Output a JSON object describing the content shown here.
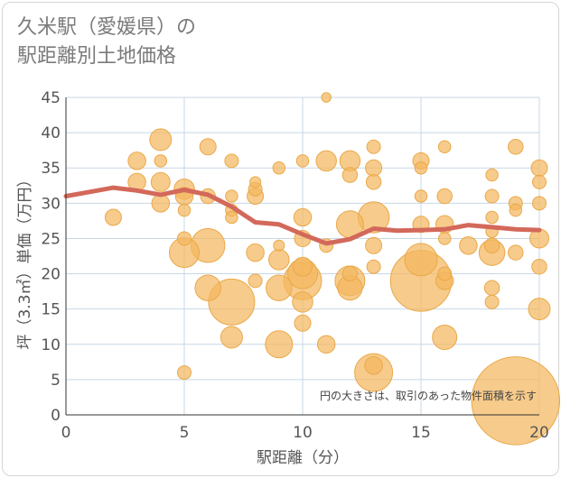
{
  "chart_data": {
    "type": "scatter",
    "title_line1": "久米駅（愛媛県）の",
    "title_line2": "駅距離別土地価格",
    "xlabel": "駅距離（分）",
    "ylabel": "坪（3.3㎡）単価（万円）",
    "xlim": [
      0,
      20
    ],
    "ylim": [
      0,
      45
    ],
    "xticks": [
      "0",
      "5",
      "10",
      "15",
      "20"
    ],
    "yticks": [
      "0",
      "5",
      "10",
      "15",
      "20",
      "25",
      "30",
      "35",
      "40",
      "45"
    ],
    "grid": true,
    "note": "円の大きさは、取引のあった物件面積を示す",
    "colors": {
      "bubble": "#f4b75e",
      "bubble_edge": "#e9a94a",
      "trend": "#d3695a",
      "grid": "#c8d7e6",
      "axis": "#333333"
    },
    "series": [
      {
        "name": "取引",
        "points": [
          {
            "x": 2,
            "y": 28,
            "s": 1.2
          },
          {
            "x": 3,
            "y": 36,
            "s": 1.3
          },
          {
            "x": 3,
            "y": 33,
            "s": 1.3
          },
          {
            "x": 4,
            "y": 39,
            "s": 1.6
          },
          {
            "x": 4,
            "y": 36,
            "s": 0.9
          },
          {
            "x": 4,
            "y": 33,
            "s": 1.4
          },
          {
            "x": 4,
            "y": 30,
            "s": 1.3
          },
          {
            "x": 5,
            "y": 32,
            "s": 1.5
          },
          {
            "x": 5,
            "y": 31,
            "s": 1.3
          },
          {
            "x": 5,
            "y": 29,
            "s": 0.9
          },
          {
            "x": 5,
            "y": 25,
            "s": 1.0
          },
          {
            "x": 5,
            "y": 23,
            "s": 2.2
          },
          {
            "x": 5,
            "y": 6,
            "s": 1.0
          },
          {
            "x": 6,
            "y": 38,
            "s": 1.2
          },
          {
            "x": 6,
            "y": 31,
            "s": 1.1
          },
          {
            "x": 6,
            "y": 24,
            "s": 2.5
          },
          {
            "x": 6,
            "y": 18,
            "s": 1.9
          },
          {
            "x": 7,
            "y": 36,
            "s": 1.0
          },
          {
            "x": 7,
            "y": 31,
            "s": 0.9
          },
          {
            "x": 7,
            "y": 29,
            "s": 0.9
          },
          {
            "x": 7,
            "y": 28,
            "s": 0.9
          },
          {
            "x": 7,
            "y": 16,
            "s": 3.4
          },
          {
            "x": 7,
            "y": 11,
            "s": 1.6
          },
          {
            "x": 8,
            "y": 33,
            "s": 0.8
          },
          {
            "x": 8,
            "y": 32,
            "s": 1.0
          },
          {
            "x": 8,
            "y": 31,
            "s": 1.2
          },
          {
            "x": 8,
            "y": 23,
            "s": 1.3
          },
          {
            "x": 8,
            "y": 19,
            "s": 1.0
          },
          {
            "x": 9,
            "y": 35,
            "s": 0.9
          },
          {
            "x": 9,
            "y": 24,
            "s": 0.8
          },
          {
            "x": 9,
            "y": 22,
            "s": 1.5
          },
          {
            "x": 9,
            "y": 18,
            "s": 1.9
          },
          {
            "x": 9,
            "y": 10,
            "s": 2.0
          },
          {
            "x": 10,
            "y": 36,
            "s": 0.9
          },
          {
            "x": 10,
            "y": 28,
            "s": 1.3
          },
          {
            "x": 10,
            "y": 25,
            "s": 1.2
          },
          {
            "x": 10,
            "y": 21,
            "s": 1.4
          },
          {
            "x": 10,
            "y": 20,
            "s": 2.2
          },
          {
            "x": 10,
            "y": 19,
            "s": 2.8
          },
          {
            "x": 10,
            "y": 16,
            "s": 1.5
          },
          {
            "x": 10,
            "y": 13,
            "s": 1.2
          },
          {
            "x": 11,
            "y": 45,
            "s": 0.7
          },
          {
            "x": 11,
            "y": 36,
            "s": 1.5
          },
          {
            "x": 11,
            "y": 24,
            "s": 1.0
          },
          {
            "x": 11,
            "y": 10,
            "s": 1.3
          },
          {
            "x": 12,
            "y": 36,
            "s": 1.5
          },
          {
            "x": 12,
            "y": 34,
            "s": 1.1
          },
          {
            "x": 12,
            "y": 27,
            "s": 2.0
          },
          {
            "x": 12,
            "y": 20,
            "s": 1.1
          },
          {
            "x": 12,
            "y": 19,
            "s": 2.2
          },
          {
            "x": 12,
            "y": 18,
            "s": 1.8
          },
          {
            "x": 13,
            "y": 38,
            "s": 1.0
          },
          {
            "x": 13,
            "y": 35,
            "s": 1.2
          },
          {
            "x": 13,
            "y": 33,
            "s": 1.1
          },
          {
            "x": 13,
            "y": 28,
            "s": 2.3
          },
          {
            "x": 13,
            "y": 24,
            "s": 1.2
          },
          {
            "x": 13,
            "y": 21,
            "s": 1.0
          },
          {
            "x": 13,
            "y": 7,
            "s": 1.3
          },
          {
            "x": 13,
            "y": 6,
            "s": 2.8
          },
          {
            "x": 15,
            "y": 36,
            "s": 1.2
          },
          {
            "x": 15,
            "y": 35,
            "s": 0.9
          },
          {
            "x": 15,
            "y": 31,
            "s": 0.9
          },
          {
            "x": 15,
            "y": 27,
            "s": 1.2
          },
          {
            "x": 15,
            "y": 22,
            "s": 2.4
          },
          {
            "x": 15,
            "y": 19,
            "s": 4.5
          },
          {
            "x": 16,
            "y": 38,
            "s": 0.9
          },
          {
            "x": 16,
            "y": 31,
            "s": 1.1
          },
          {
            "x": 16,
            "y": 27,
            "s": 1.3
          },
          {
            "x": 16,
            "y": 25,
            "s": 0.9
          },
          {
            "x": 16,
            "y": 20,
            "s": 1.0
          },
          {
            "x": 16,
            "y": 19,
            "s": 1.3
          },
          {
            "x": 16,
            "y": 11,
            "s": 1.8
          },
          {
            "x": 17,
            "y": 24,
            "s": 1.3
          },
          {
            "x": 18,
            "y": 34,
            "s": 0.9
          },
          {
            "x": 18,
            "y": 31,
            "s": 1.0
          },
          {
            "x": 18,
            "y": 28,
            "s": 0.9
          },
          {
            "x": 18,
            "y": 26,
            "s": 0.9
          },
          {
            "x": 18,
            "y": 24,
            "s": 1.1
          },
          {
            "x": 18,
            "y": 23,
            "s": 1.9
          },
          {
            "x": 18,
            "y": 18,
            "s": 1.1
          },
          {
            "x": 18,
            "y": 16,
            "s": 1.0
          },
          {
            "x": 19,
            "y": 38,
            "s": 1.1
          },
          {
            "x": 19,
            "y": 30,
            "s": 1.0
          },
          {
            "x": 19,
            "y": 29,
            "s": 0.9
          },
          {
            "x": 19,
            "y": 23,
            "s": 1.1
          },
          {
            "x": 19,
            "y": 2,
            "s": 6.5
          },
          {
            "x": 20,
            "y": 35,
            "s": 1.2
          },
          {
            "x": 20,
            "y": 33,
            "s": 1.0
          },
          {
            "x": 20,
            "y": 30,
            "s": 1.0
          },
          {
            "x": 20,
            "y": 25,
            "s": 1.4
          },
          {
            "x": 20,
            "y": 21,
            "s": 1.1
          },
          {
            "x": 20,
            "y": 15,
            "s": 1.6
          }
        ]
      },
      {
        "name": "平均",
        "type": "line",
        "x": [
          0,
          1,
          2,
          3,
          4,
          5,
          6,
          7,
          8,
          9,
          10,
          11,
          12,
          13,
          14,
          15,
          16,
          17,
          18,
          19,
          20
        ],
        "values": [
          31.0,
          31.6,
          32.2,
          31.8,
          31.2,
          31.9,
          31.2,
          29.5,
          27.3,
          27.0,
          25.6,
          24.3,
          24.9,
          26.4,
          26.1,
          26.2,
          26.3,
          26.9,
          26.6,
          26.3,
          26.2
        ]
      }
    ]
  }
}
